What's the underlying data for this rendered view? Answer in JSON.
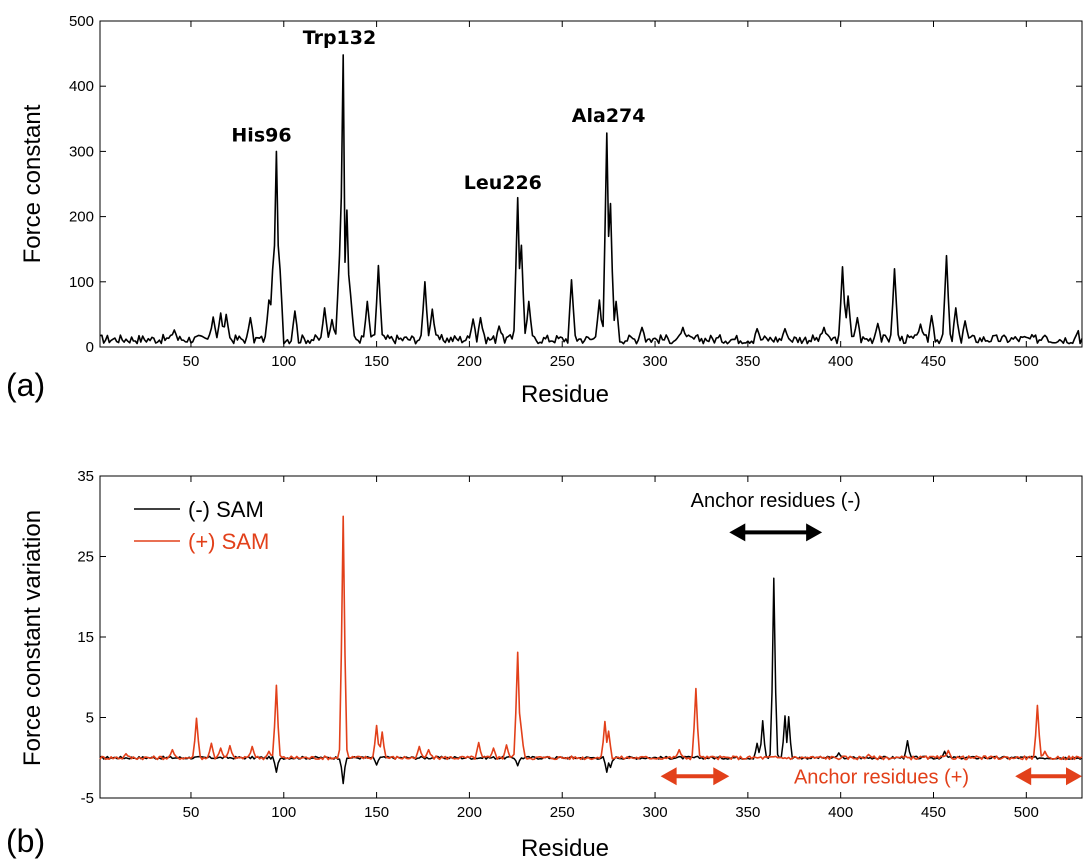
{
  "chart_data": [
    {
      "panel": "(a)",
      "type": "line",
      "xlabel": "Residue",
      "ylabel": "Force constant",
      "xlim": [
        1,
        530
      ],
      "ylim": [
        0,
        500
      ],
      "xticks": [
        50,
        100,
        150,
        200,
        250,
        300,
        350,
        400,
        450,
        500
      ],
      "yticks": [
        0,
        100,
        200,
        300,
        400,
        500
      ],
      "grid": false,
      "series": [
        {
          "color": "#000000",
          "baseline_level": 12,
          "peaks": [
            {
              "x": 41,
              "y": 26
            },
            {
              "x": 62,
              "y": 46
            },
            {
              "x": 66,
              "y": 52
            },
            {
              "x": 69,
              "y": 50
            },
            {
              "x": 82,
              "y": 45
            },
            {
              "x": 92,
              "y": 72
            },
            {
              "x": 94,
              "y": 118
            },
            {
              "x": 96,
              "y": 300
            },
            {
              "x": 98,
              "y": 118
            },
            {
              "x": 106,
              "y": 55
            },
            {
              "x": 122,
              "y": 60
            },
            {
              "x": 126,
              "y": 42
            },
            {
              "x": 130,
              "y": 140
            },
            {
              "x": 132,
              "y": 448
            },
            {
              "x": 133,
              "y": 130
            },
            {
              "x": 134,
              "y": 210
            },
            {
              "x": 136,
              "y": 80
            },
            {
              "x": 145,
              "y": 70
            },
            {
              "x": 151,
              "y": 125
            },
            {
              "x": 176,
              "y": 100
            },
            {
              "x": 180,
              "y": 58
            },
            {
              "x": 202,
              "y": 43
            },
            {
              "x": 206,
              "y": 45
            },
            {
              "x": 216,
              "y": 32
            },
            {
              "x": 226,
              "y": 229
            },
            {
              "x": 228,
              "y": 156
            },
            {
              "x": 232,
              "y": 70
            },
            {
              "x": 255,
              "y": 103
            },
            {
              "x": 270,
              "y": 72
            },
            {
              "x": 274,
              "y": 328
            },
            {
              "x": 276,
              "y": 220
            },
            {
              "x": 279,
              "y": 70
            },
            {
              "x": 293,
              "y": 30
            },
            {
              "x": 315,
              "y": 30
            },
            {
              "x": 355,
              "y": 28
            },
            {
              "x": 370,
              "y": 28
            },
            {
              "x": 391,
              "y": 30
            },
            {
              "x": 401,
              "y": 123
            },
            {
              "x": 404,
              "y": 78
            },
            {
              "x": 409,
              "y": 45
            },
            {
              "x": 420,
              "y": 36
            },
            {
              "x": 429,
              "y": 120
            },
            {
              "x": 443,
              "y": 35
            },
            {
              "x": 449,
              "y": 48
            },
            {
              "x": 457,
              "y": 140
            },
            {
              "x": 462,
              "y": 60
            },
            {
              "x": 467,
              "y": 40
            },
            {
              "x": 510,
              "y": 18
            },
            {
              "x": 528,
              "y": 25
            }
          ]
        }
      ],
      "annotations": [
        {
          "text": "His96",
          "x": 88,
          "y": 315
        },
        {
          "text": "Trp132",
          "x": 130,
          "y": 465
        },
        {
          "text": "Leu226",
          "x": 218,
          "y": 242
        },
        {
          "text": "Ala274",
          "x": 275,
          "y": 345
        }
      ]
    },
    {
      "panel": "(b)",
      "type": "line",
      "xlabel": "Residue",
      "ylabel": "Force constant variation",
      "xlim": [
        1,
        530
      ],
      "ylim": [
        -5,
        35
      ],
      "xticks": [
        50,
        100,
        150,
        200,
        250,
        300,
        350,
        400,
        450,
        500
      ],
      "yticks": [
        -5,
        5,
        15,
        25,
        35
      ],
      "grid": false,
      "legend_position": "top-left",
      "series": [
        {
          "name": "(-) SAM",
          "color": "#000000",
          "peaks": [
            {
              "x": 96,
              "y": -1.8
            },
            {
              "x": 132,
              "y": -3.2
            },
            {
              "x": 150,
              "y": -0.9
            },
            {
              "x": 226,
              "y": -1.0
            },
            {
              "x": 274,
              "y": -1.8
            },
            {
              "x": 276,
              "y": -1.2
            },
            {
              "x": 355,
              "y": 1.8
            },
            {
              "x": 358,
              "y": 4.6
            },
            {
              "x": 364,
              "y": 22.3
            },
            {
              "x": 370,
              "y": 5.2
            },
            {
              "x": 372,
              "y": 5.1
            },
            {
              "x": 399,
              "y": 0.6
            },
            {
              "x": 436,
              "y": 2.1
            },
            {
              "x": 456,
              "y": 0.8
            }
          ]
        },
        {
          "name": "(+) SAM",
          "color": "#e2401a",
          "peaks": [
            {
              "x": 15,
              "y": 0.5
            },
            {
              "x": 40,
              "y": 1.0
            },
            {
              "x": 53,
              "y": 4.9
            },
            {
              "x": 61,
              "y": 1.8
            },
            {
              "x": 66,
              "y": 1.2
            },
            {
              "x": 71,
              "y": 1.5
            },
            {
              "x": 83,
              "y": 1.4
            },
            {
              "x": 92,
              "y": 0.8
            },
            {
              "x": 96,
              "y": 9.0
            },
            {
              "x": 132,
              "y": 30.0
            },
            {
              "x": 150,
              "y": 4.0
            },
            {
              "x": 153,
              "y": 3.2
            },
            {
              "x": 173,
              "y": 1.4
            },
            {
              "x": 178,
              "y": 1.0
            },
            {
              "x": 205,
              "y": 1.9
            },
            {
              "x": 213,
              "y": 1.2
            },
            {
              "x": 220,
              "y": 1.6
            },
            {
              "x": 226,
              "y": 13.1
            },
            {
              "x": 228,
              "y": 3.5
            },
            {
              "x": 273,
              "y": 4.5
            },
            {
              "x": 275,
              "y": 3.3
            },
            {
              "x": 313,
              "y": 1.0
            },
            {
              "x": 322,
              "y": 8.6
            },
            {
              "x": 415,
              "y": 0.4
            },
            {
              "x": 458,
              "y": 0.9
            },
            {
              "x": 506,
              "y": 6.5
            },
            {
              "x": 510,
              "y": 0.8
            }
          ]
        }
      ],
      "annotations": [
        {
          "text": "Anchor residues (-)",
          "color": "#000000",
          "arrow_x": [
            340,
            390
          ],
          "arrow_y": 28,
          "text_x": 365,
          "text_y": 32
        },
        {
          "text": "Anchor residues (+)",
          "color": "#e2401a",
          "arrow_x": [
            303,
            340
          ],
          "arrow_y": -2.3,
          "text_x": 422,
          "text_y": -2.3
        },
        {
          "text": "",
          "color": "#e2401a",
          "arrow_x": [
            494,
            530
          ],
          "arrow_y": -2.3
        }
      ]
    }
  ],
  "figure": {
    "panel_a_label": "(a)",
    "panel_b_label": "(b)"
  }
}
